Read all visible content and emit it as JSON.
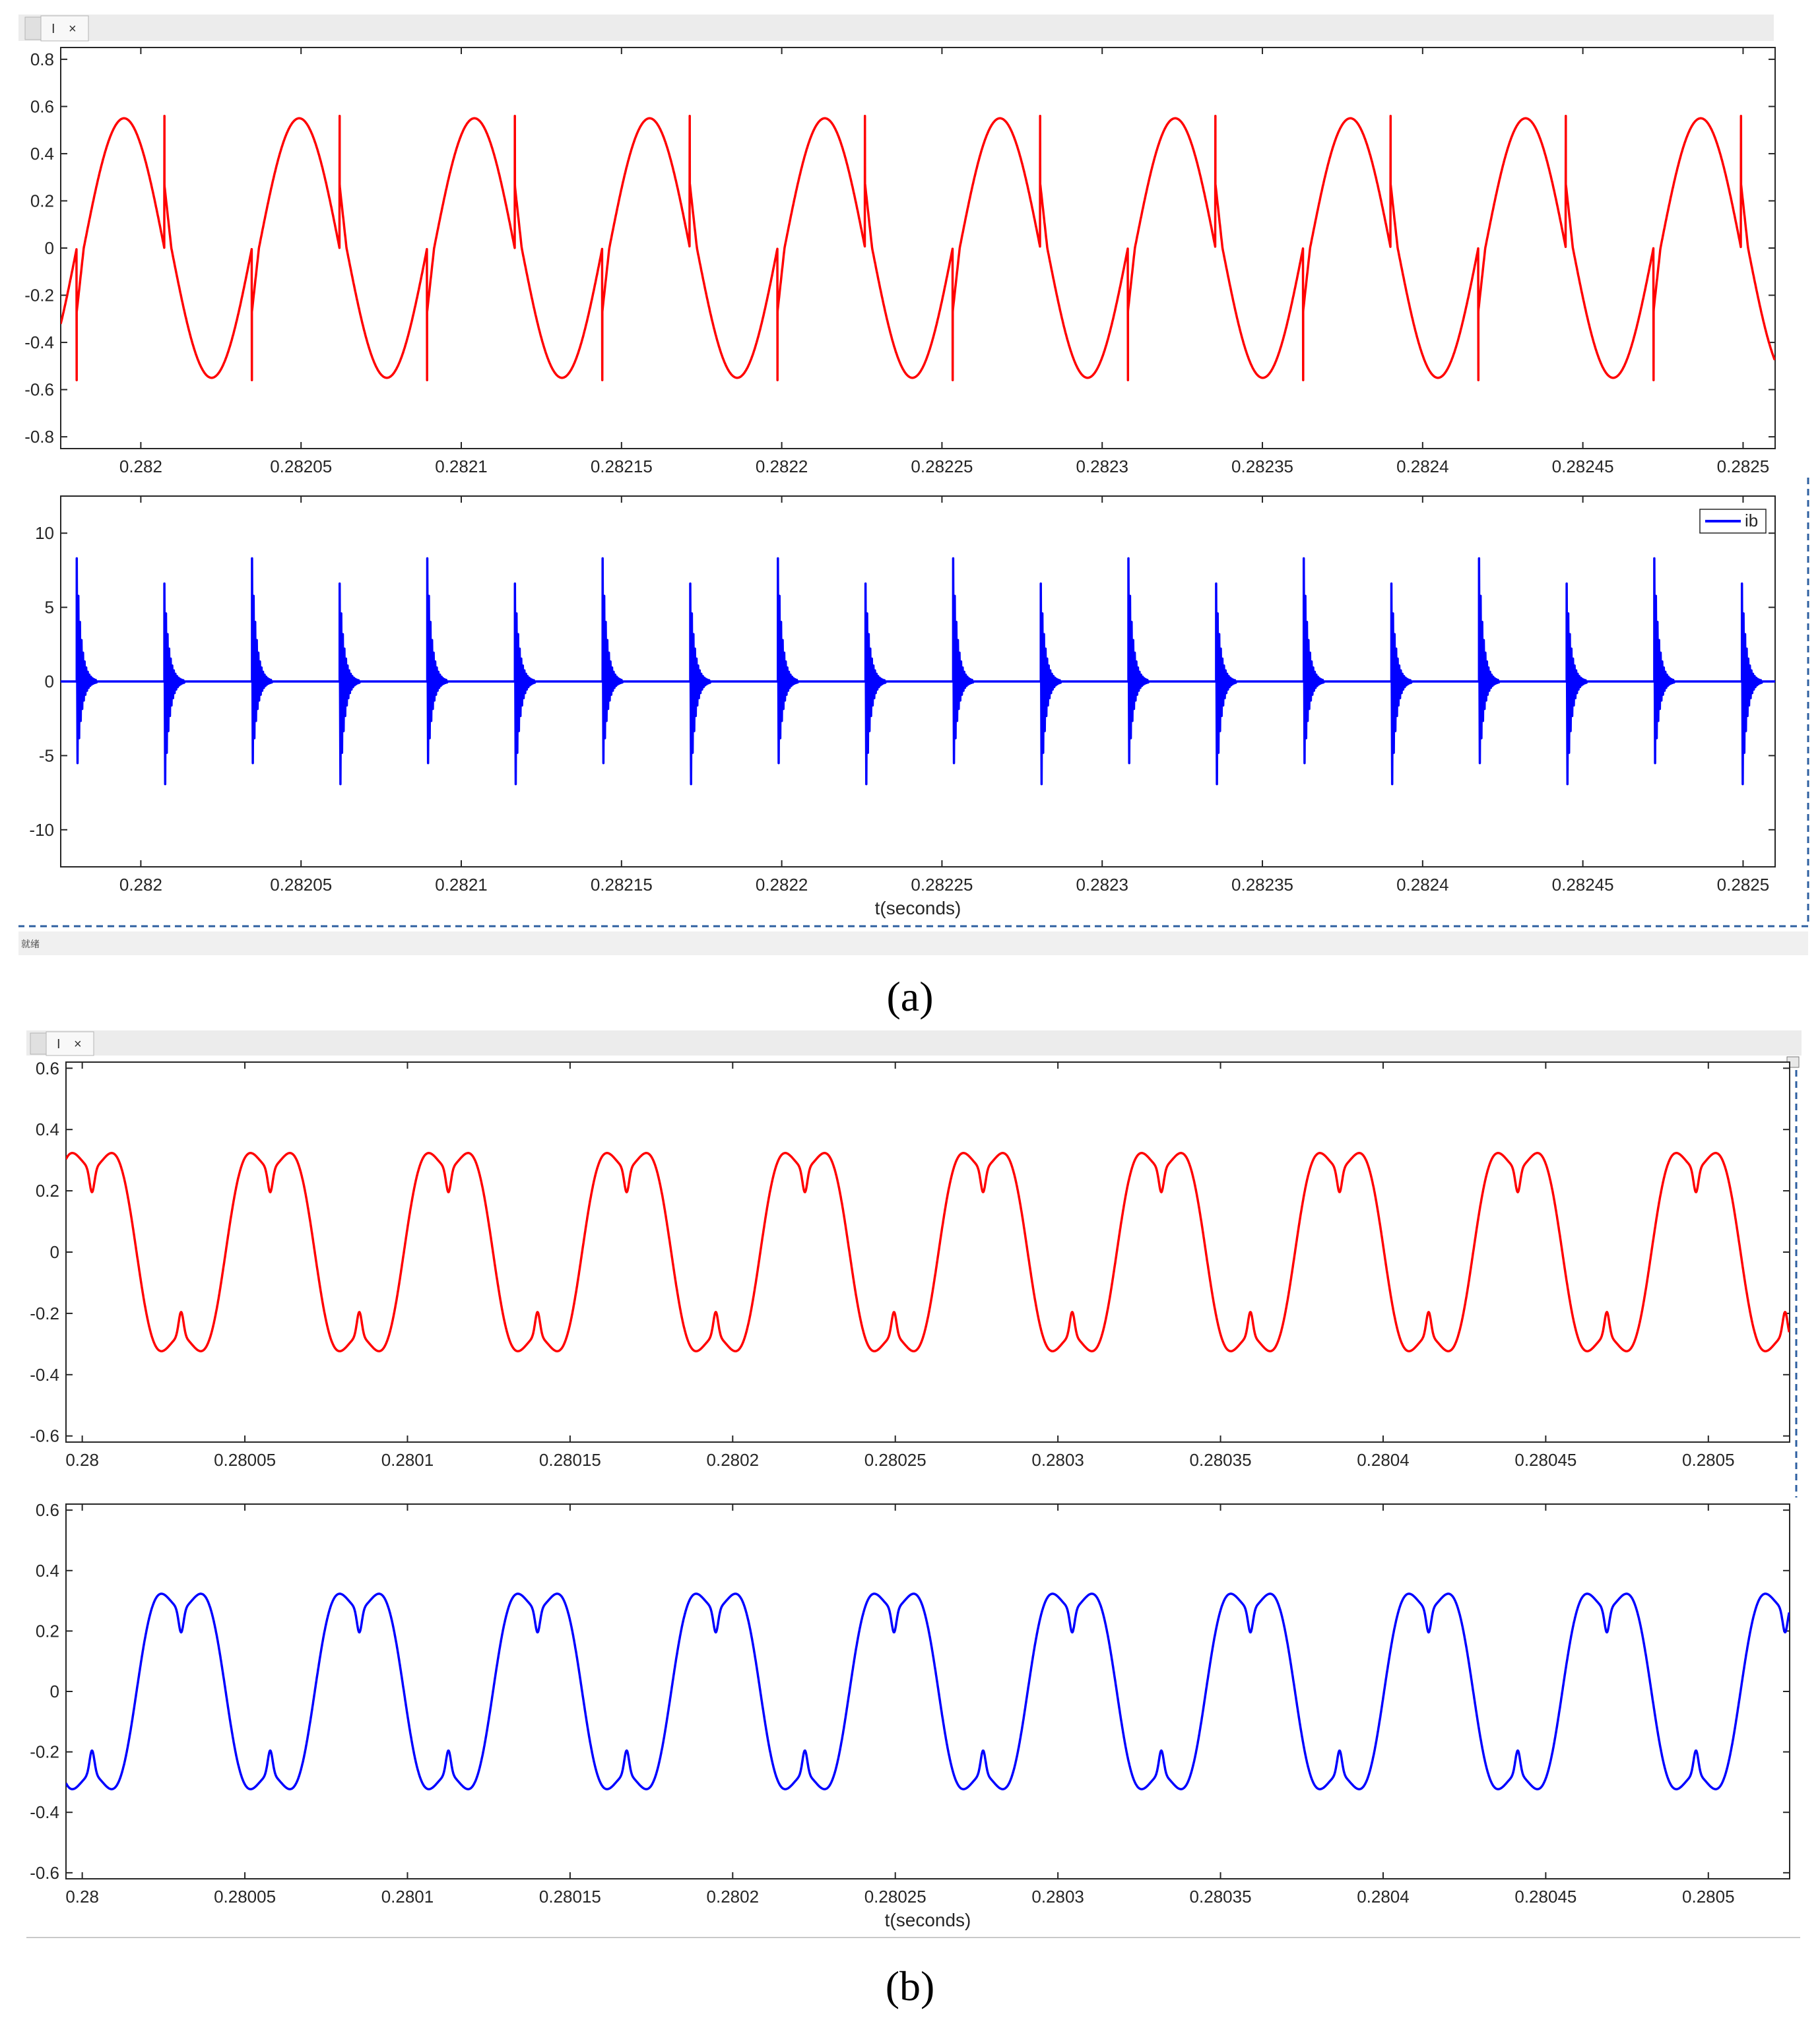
{
  "figure_a": {
    "caption": "(a)",
    "tab": {
      "label": "I",
      "close": "×"
    },
    "status_text": "就绪"
  },
  "figure_b": {
    "caption": "(b)",
    "tab": {
      "label": "I",
      "close": "×"
    }
  },
  "colors": {
    "red": "#ff0000",
    "blue": "#0000ff",
    "axes": "#262626",
    "chrome": "#ececec"
  },
  "chart_data": [
    {
      "id": "a-top",
      "type": "line",
      "xlim": [
        0.281975,
        0.28251
      ],
      "ylim": [
        -0.85,
        0.85
      ],
      "xticks": [
        0.282,
        0.28205,
        0.2821,
        0.28215,
        0.2822,
        0.28225,
        0.2823,
        0.28235,
        0.2824,
        0.28245,
        0.2825
      ],
      "xtick_labels": [
        "0.282",
        "0.28205",
        "0.2821",
        "0.28215",
        "0.2822",
        "0.28225",
        "0.2823",
        "0.28235",
        "0.2824",
        "0.28245",
        "0.2825"
      ],
      "yticks": [
        -0.8,
        -0.6,
        -0.4,
        -0.2,
        0,
        0.2,
        0.4,
        0.6,
        0.8
      ],
      "ytick_labels": [
        "-0.8",
        "-0.6",
        "-0.4",
        "-0.2",
        "0",
        "0.2",
        "0.4",
        "0.6",
        "0.8"
      ],
      "xlabel": "",
      "series": [
        {
          "color": "#ff0000",
          "waveform": {
            "kind": "switched",
            "period": 5.467e-05,
            "amplitude": 0.55,
            "jump_low": -0.27,
            "jump_high": 0.56,
            "t0": 0.28198
          }
        }
      ]
    },
    {
      "id": "a-bottom",
      "type": "line",
      "xlim": [
        0.281975,
        0.28251
      ],
      "ylim": [
        -12.5,
        12.5
      ],
      "xticks": [
        0.282,
        0.28205,
        0.2821,
        0.28215,
        0.2822,
        0.28225,
        0.2823,
        0.28235,
        0.2824,
        0.28245,
        0.2825
      ],
      "xtick_labels": [
        "0.282",
        "0.28205",
        "0.2821",
        "0.28215",
        "0.2822",
        "0.28225",
        "0.2823",
        "0.28235",
        "0.2824",
        "0.28245",
        "0.2825"
      ],
      "yticks": [
        -10,
        -5,
        0,
        5,
        10
      ],
      "ytick_labels": [
        "-10",
        "-5",
        "0",
        "5",
        "10"
      ],
      "xlabel": "t(seconds)",
      "legend": {
        "entry": "ib",
        "placement": "top-right"
      },
      "series": [
        {
          "name": "ib",
          "color": "#0000ff",
          "waveform": {
            "kind": "spikes",
            "interval": 2.735e-05,
            "t0": 0.28198,
            "peak_pos": [
              8.3,
              6.6
            ],
            "peak_neg": [
              -6.6,
              -8.3
            ]
          }
        }
      ]
    },
    {
      "id": "b-top",
      "type": "line",
      "xlim": [
        0.279995,
        0.280525
      ],
      "ylim": [
        -0.62,
        0.62
      ],
      "xticks": [
        0.28,
        0.28005,
        0.2801,
        0.28015,
        0.2802,
        0.28025,
        0.2803,
        0.28035,
        0.2804,
        0.28045,
        0.2805
      ],
      "xtick_labels": [
        "0.28",
        "0.28005",
        "0.2801",
        "0.28015",
        "0.2802",
        "0.28025",
        "0.2803",
        "0.28035",
        "0.2804",
        "0.28045",
        "0.2805"
      ],
      "yticks": [
        -0.6,
        -0.4,
        -0.2,
        0,
        0.2,
        0.4,
        0.6
      ],
      "ytick_labels": [
        "-0.6",
        "-0.4",
        "-0.2",
        "0",
        "0.2",
        "0.4",
        "0.6"
      ],
      "xlabel": "",
      "series": [
        {
          "color": "#ff0000",
          "waveform": {
            "kind": "notched_sine",
            "period": 5.48e-05,
            "peak": 0.38,
            "notch_value": 0.3,
            "phase_t": 0.2799893
          }
        }
      ]
    },
    {
      "id": "b-bottom",
      "type": "line",
      "xlim": [
        0.279995,
        0.280525
      ],
      "ylim": [
        -0.62,
        0.62
      ],
      "xticks": [
        0.28,
        0.28005,
        0.2801,
        0.28015,
        0.2802,
        0.28025,
        0.2803,
        0.28035,
        0.2804,
        0.28045,
        0.2805
      ],
      "xtick_labels": [
        "0.28",
        "0.28005",
        "0.2801",
        "0.28015",
        "0.2802",
        "0.28025",
        "0.2803",
        "0.28035",
        "0.2804",
        "0.28045",
        "0.2805"
      ],
      "yticks": [
        -0.6,
        -0.4,
        -0.2,
        0,
        0.2,
        0.4,
        0.6
      ],
      "ytick_labels": [
        "-0.6",
        "-0.4",
        "-0.2",
        "0",
        "0.2",
        "0.4",
        "0.6"
      ],
      "xlabel": "t(seconds)",
      "series": [
        {
          "color": "#0000ff",
          "waveform": {
            "kind": "notched_sine",
            "period": 5.48e-05,
            "peak": 0.38,
            "notch_value": 0.3,
            "phase_t": 0.2800167
          }
        }
      ]
    }
  ]
}
